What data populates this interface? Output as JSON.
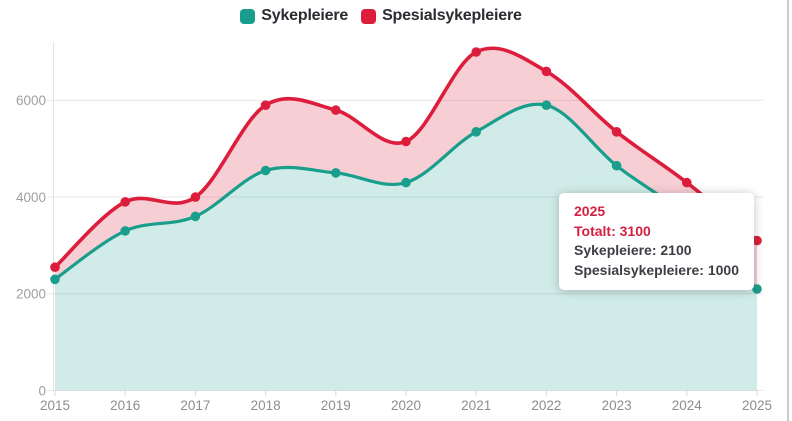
{
  "legend": {
    "items": [
      {
        "label": "Sykepleiere",
        "color": "#1a9e8c"
      },
      {
        "label": "Spesialsykepleiere",
        "color": "#dc1e3c"
      }
    ]
  },
  "tooltip": {
    "title": "2025",
    "total": "Totalt: 3100",
    "row_sykepleiere": "Sykepleiere: 2100",
    "row_spesialsykepleiere": "Spesialsykepleiere: 1000",
    "accent_color": "#d51f3f",
    "text_color": "#3d3e44"
  },
  "chart_data": {
    "type": "area",
    "stacked": true,
    "x": [
      2015,
      2016,
      2017,
      2018,
      2019,
      2020,
      2021,
      2022,
      2023,
      2024,
      2025
    ],
    "yticks": [
      0,
      2000,
      4000,
      6000
    ],
    "ylim": [
      0,
      7250
    ],
    "grid": "horizontal",
    "legend_position": "top",
    "series": [
      {
        "name": "Sykepleiere",
        "color": "#1a9e8c",
        "fill": "rgba(26,158,140,0.20)",
        "values": [
          2300,
          3300,
          3600,
          4550,
          4500,
          4300,
          5350,
          5900,
          4650,
          3600,
          2100
        ]
      },
      {
        "name": "Spesialsykepleiere",
        "color": "#dc1e3c",
        "fill": "rgba(220,30,60,0.22)",
        "values": [
          250,
          600,
          400,
          1350,
          1300,
          850,
          1650,
          700,
          700,
          700,
          1000
        ]
      }
    ],
    "totals": [
      2550,
      3900,
      4000,
      5900,
      5800,
      5150,
      7000,
      6600,
      5350,
      4300,
      3100
    ],
    "hovered_year": 2025,
    "colors": {
      "grid": "#e7e7e8",
      "axis_line": "#e2e2e4",
      "tick": "#dadadc",
      "x_label": "#8d8d93",
      "y_label": "#9fa0a4"
    }
  }
}
